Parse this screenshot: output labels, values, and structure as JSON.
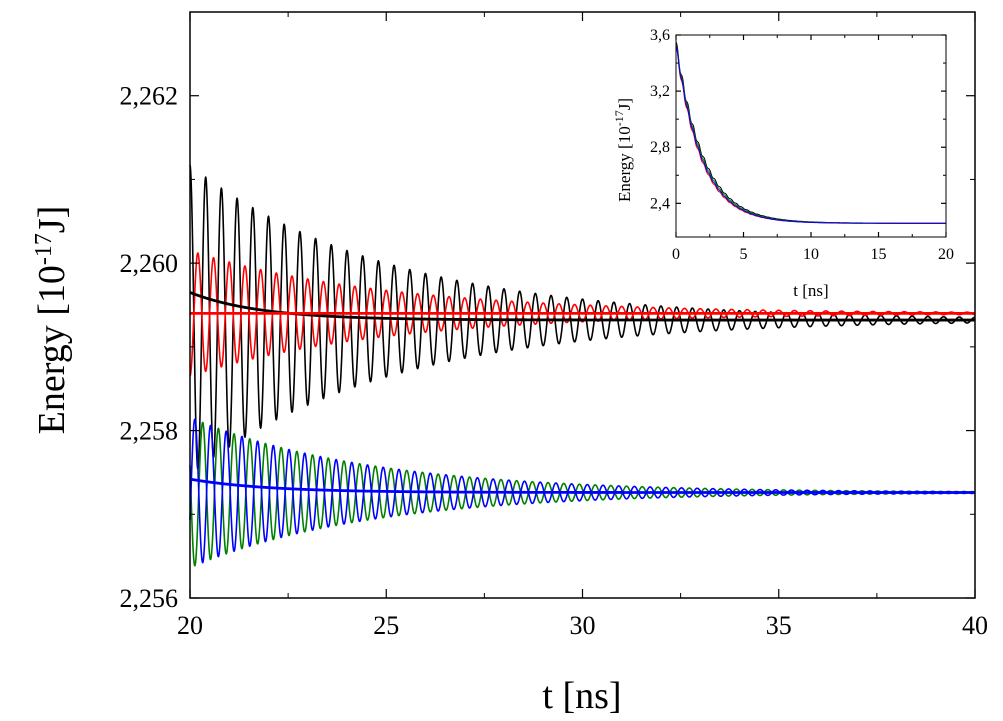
{
  "chart_data": [
    {
      "id": "main",
      "type": "line",
      "title": "",
      "xlabel": "t [ns]",
      "ylabel": {
        "prefix": "Energy [10",
        "exponent": "-17",
        "suffix": "J]"
      },
      "xlim": [
        20,
        40
      ],
      "ylim": [
        2.256,
        2.263
      ],
      "xticks": [
        {
          "value": 20,
          "label": "20"
        },
        {
          "value": 25,
          "label": "25"
        },
        {
          "value": 30,
          "label": "30"
        },
        {
          "value": 35,
          "label": "35"
        },
        {
          "value": 40,
          "label": "40"
        }
      ],
      "yticks": [
        {
          "value": 2.256,
          "label": "2,256"
        },
        {
          "value": 2.258,
          "label": "2,258"
        },
        {
          "value": 2.26,
          "label": "2,260"
        },
        {
          "value": 2.262,
          "label": "2,262"
        }
      ],
      "series": [
        {
          "name": "black-oscillation",
          "color": "#000000",
          "kind": "damped-oscillation",
          "baseline": 2.25932,
          "amplitude": 0.00185,
          "decay_ns": 5.0,
          "period_ns": 0.4,
          "phase": 0.0
        },
        {
          "name": "red-oscillation",
          "color": "#ff0000",
          "kind": "damped-oscillation",
          "baseline": 2.2594,
          "amplitude": 0.00075,
          "decay_ns": 5.0,
          "period_ns": 0.4,
          "phase": 3.14159
        },
        {
          "name": "black-average",
          "color": "#000000",
          "kind": "exp-relaxation",
          "baseline": 2.25932,
          "start": 2.25965,
          "decay_ns": 1.8
        },
        {
          "name": "red-average",
          "color": "#ff0000",
          "kind": "constant",
          "baseline": 2.2594
        },
        {
          "name": "green-oscillation",
          "color": "#008000",
          "kind": "damped-oscillation",
          "baseline": 2.25726,
          "amplitude": 0.0009,
          "decay_ns": 4.5,
          "period_ns": 0.4,
          "phase": 1.2
        },
        {
          "name": "blue-oscillation",
          "color": "#0000ff",
          "kind": "damped-oscillation",
          "baseline": 2.25726,
          "amplitude": 0.0009,
          "decay_ns": 4.5,
          "period_ns": 0.4,
          "phase": 4.34
        },
        {
          "name": "blue-average",
          "color": "#0000ff",
          "kind": "exp-relaxation",
          "baseline": 2.25726,
          "start": 2.25742,
          "decay_ns": 2.0
        }
      ]
    },
    {
      "id": "inset",
      "type": "line",
      "title": "",
      "xlabel": "t [ns]",
      "ylabel": {
        "prefix": "Energy [10",
        "exponent": "-17",
        "suffix": "J]"
      },
      "xlim": [
        0,
        20
      ],
      "ylim": [
        2.16,
        3.6
      ],
      "xticks": [
        {
          "value": 0,
          "label": "0"
        },
        {
          "value": 5,
          "label": "5"
        },
        {
          "value": 10,
          "label": "10"
        },
        {
          "value": 15,
          "label": "15"
        },
        {
          "value": 20,
          "label": "20"
        }
      ],
      "yticks": [
        {
          "value": 2.4,
          "label": "2,4"
        },
        {
          "value": 2.8,
          "label": "2,8"
        },
        {
          "value": 3.2,
          "label": "3,2"
        },
        {
          "value": 3.6,
          "label": "3,6"
        }
      ],
      "series": [
        {
          "name": "black",
          "color": "#000000",
          "baseline": 2.259,
          "start": 3.55,
          "decay_ns": 2.0,
          "ripple": 0.03
        },
        {
          "name": "red",
          "color": "#ff0000",
          "baseline": 2.259,
          "start": 3.52,
          "decay_ns": 1.85,
          "ripple": 0.025
        },
        {
          "name": "green",
          "color": "#008000",
          "baseline": 2.257,
          "start": 3.54,
          "decay_ns": 1.95,
          "ripple": 0.02
        },
        {
          "name": "blue",
          "color": "#0000ff",
          "baseline": 2.257,
          "start": 3.53,
          "decay_ns": 1.9,
          "ripple": 0.02
        }
      ]
    }
  ]
}
